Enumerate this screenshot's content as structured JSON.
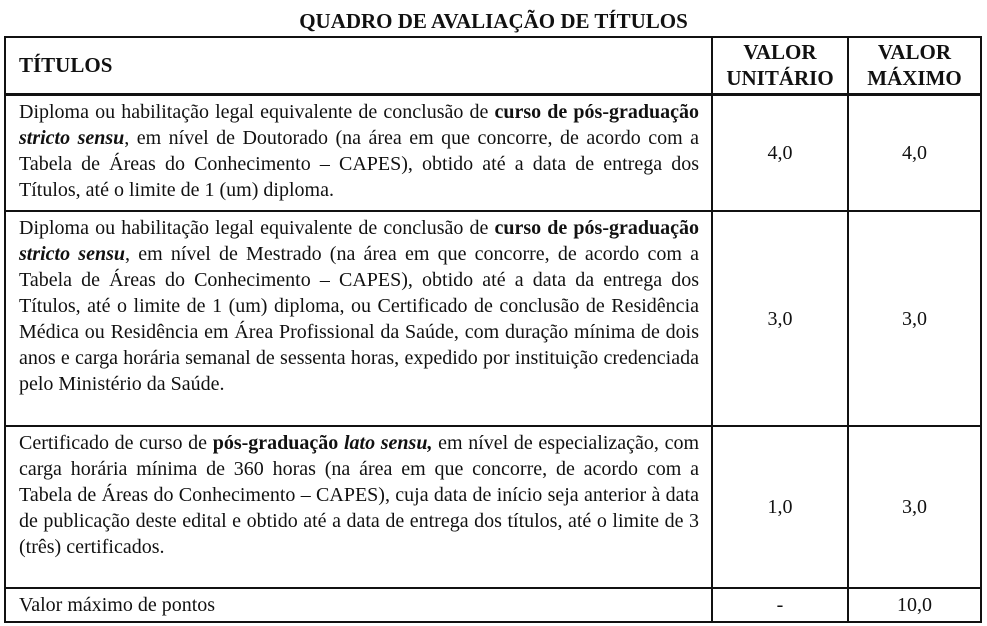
{
  "title": "QUADRO DE AVALIAÇÃO DE TÍTULOS",
  "headers": {
    "titulos": "TÍTULOS",
    "unit_1": "VALOR",
    "unit_2": "UNITÁRIO",
    "max_1": "VALOR",
    "max_2": "MÁXIMO"
  },
  "rows": [
    {
      "t0": "Diploma ou habilitação legal equivalente de conclusão de ",
      "t1": "curso de pós-graduação ",
      "t2": "stricto sensu",
      "t3": ", em nível de Doutorado (na área em que concorre, de acordo com a Tabela de Áreas do Conhecimento – CAPES), obtido até a data de entrega dos Títulos, até o limite de 1 (um) diploma.",
      "unit": "4,0",
      "max": "4,0"
    },
    {
      "t0": "Diploma ou habilitação legal equivalente de conclusão de ",
      "t1": "curso de pós-graduação ",
      "t2": "stricto sensu",
      "t3": ", em nível de Mestrado (na área em que concorre, de acordo com a Tabela de Áreas do Conhecimento – CAPES), obtido até a data da entrega dos Títulos, até o limite de 1 (um) diploma, ou Certificado de conclusão de Residência Médica ou Residência em Área Profissional da Saúde, com duração mínima de dois anos e carga horária semanal de sessenta horas, expedido por instituição credenciada pelo Ministério da Saúde.",
      "unit": "3,0",
      "max": "3,0"
    },
    {
      "t0": "Certificado de curso de ",
      "t1": "pós-graduação ",
      "t2": "lato sensu,",
      "t3": " em nível de especialização, com carga horária mínima de 360 horas (na área em que concorre, de acordo com a Tabela de Áreas do Conhecimento – CAPES), cuja data de início seja anterior à data de publicação deste edital e obtido até a data de entrega dos títulos, até o limite de 3 (três) certificados.",
      "unit": "1,0",
      "max": "3,0"
    }
  ],
  "total": {
    "label": "Valor máximo de pontos",
    "unit": "-",
    "max": "10,0"
  }
}
